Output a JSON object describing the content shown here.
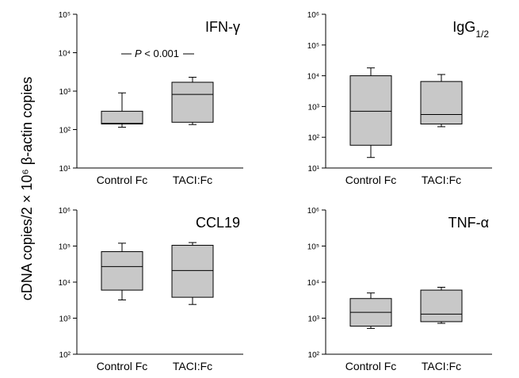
{
  "ylabel": "cDNA copies/2 × 10⁶ β-actin copies",
  "box_fill": "#c8c8c8",
  "chart_data": [
    {
      "type": "box",
      "title": "IFN-γ",
      "categories": [
        "Control Fc",
        "TACI:Fc"
      ],
      "ylim_exp": [
        1,
        5
      ],
      "yscale": "log",
      "tick_labels": [
        "10¹",
        "10²",
        "10³",
        "10⁴",
        "10⁵"
      ],
      "boxes": [
        {
          "min": 115,
          "q1": 140,
          "median": 145,
          "q3": 300,
          "max": 900
        },
        {
          "min": 135,
          "q1": 155,
          "median": 820,
          "q3": 1700,
          "max": 2300
        }
      ],
      "annotation": "P < 0.001"
    },
    {
      "type": "box",
      "title": "IgG1/2",
      "categories": [
        "Control Fc",
        "TACI:Fc"
      ],
      "ylim_exp": [
        1,
        6
      ],
      "yscale": "log",
      "tick_labels": [
        "10¹",
        "10²",
        "10³",
        "10⁴",
        "10⁵",
        "10⁶"
      ],
      "boxes": [
        {
          "min": 22,
          "q1": 55,
          "median": 700,
          "q3": 10000,
          "max": 18000
        },
        {
          "min": 220,
          "q1": 270,
          "median": 550,
          "q3": 6500,
          "max": 11000
        }
      ]
    },
    {
      "type": "box",
      "title": "CCL19",
      "categories": [
        "Control Fc",
        "TACI:Fc"
      ],
      "ylim_exp": [
        2,
        6
      ],
      "yscale": "log",
      "tick_labels": [
        "10²",
        "10³",
        "10⁴",
        "10⁵",
        "10⁶"
      ],
      "boxes": [
        {
          "min": 3200,
          "q1": 6000,
          "median": 27000,
          "q3": 70000,
          "max": 120000
        },
        {
          "min": 2400,
          "q1": 3800,
          "median": 21000,
          "q3": 105000,
          "max": 125000
        }
      ]
    },
    {
      "type": "box",
      "title": "TNF-α",
      "categories": [
        "Control Fc",
        "TACI:Fc"
      ],
      "ylim_exp": [
        2,
        6
      ],
      "yscale": "log",
      "tick_labels": [
        "10²",
        "10³",
        "10⁴",
        "10⁵",
        "10⁶"
      ],
      "boxes": [
        {
          "min": 520,
          "q1": 600,
          "median": 1450,
          "q3": 3500,
          "max": 5000
        },
        {
          "min": 720,
          "q1": 800,
          "median": 1300,
          "q3": 6000,
          "max": 7200
        }
      ]
    }
  ]
}
